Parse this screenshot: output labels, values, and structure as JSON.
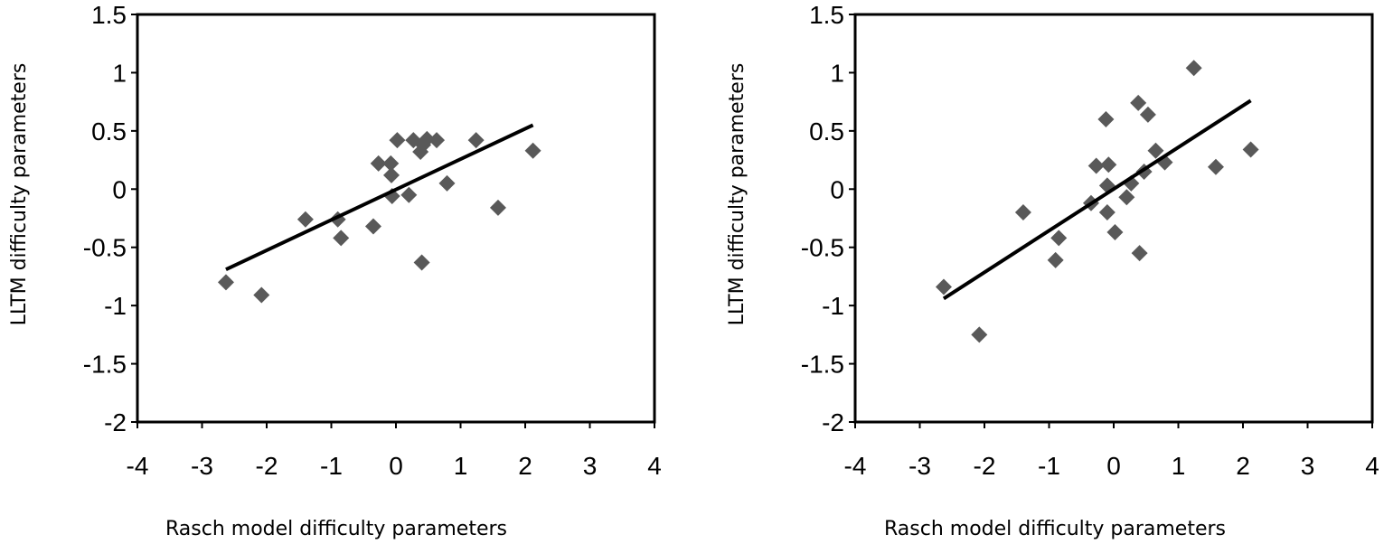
{
  "chart_data": [
    {
      "type": "scatter",
      "title": "",
      "xlabel": "Rasch model difficulty parameters",
      "ylabel": "LLTM difficulty parameters",
      "xlim": [
        -4,
        4
      ],
      "ylim": [
        -2,
        1.5
      ],
      "xticks": [
        "-4",
        "-3",
        "-2",
        "-1",
        "0",
        "1",
        "2",
        "3",
        "4"
      ],
      "yticks": [
        "1.5",
        "1",
        "0.5",
        "0",
        "-0.5",
        "-1",
        "-1.5",
        "-2"
      ],
      "grid": false,
      "legend": "none",
      "marker_color": "#595959",
      "line_color": "#000000",
      "points": [
        {
          "x": -2.63,
          "y": -0.8
        },
        {
          "x": -2.08,
          "y": -0.91
        },
        {
          "x": -1.4,
          "y": -0.26
        },
        {
          "x": -0.9,
          "y": -0.26
        },
        {
          "x": -0.85,
          "y": -0.42
        },
        {
          "x": -0.35,
          "y": -0.32
        },
        {
          "x": -0.27,
          "y": 0.22
        },
        {
          "x": -0.08,
          "y": 0.22
        },
        {
          "x": -0.07,
          "y": 0.12
        },
        {
          "x": -0.06,
          "y": -0.06
        },
        {
          "x": 0.02,
          "y": 0.42
        },
        {
          "x": 0.2,
          "y": -0.05
        },
        {
          "x": 0.27,
          "y": 0.42
        },
        {
          "x": 0.38,
          "y": 0.32
        },
        {
          "x": 0.4,
          "y": -0.63
        },
        {
          "x": 0.42,
          "y": 0.38
        },
        {
          "x": 0.48,
          "y": 0.43
        },
        {
          "x": 0.63,
          "y": 0.42
        },
        {
          "x": 0.79,
          "y": 0.05
        },
        {
          "x": 1.24,
          "y": 0.42
        },
        {
          "x": 1.58,
          "y": -0.16
        },
        {
          "x": 2.12,
          "y": 0.33
        }
      ],
      "trendline": {
        "x": [
          -2.63,
          2.12
        ],
        "y": [
          -0.69,
          0.55
        ]
      }
    },
    {
      "type": "scatter",
      "title": "",
      "xlabel": "Rasch model difficulty parameters",
      "ylabel": "LLTM difficulty parameters",
      "xlim": [
        -4,
        4
      ],
      "ylim": [
        -2,
        1.5
      ],
      "xticks": [
        "-4",
        "-3",
        "-2",
        "-1",
        "0",
        "1",
        "2",
        "3",
        "4"
      ],
      "yticks": [
        "1.5",
        "1",
        "0.5",
        "0",
        "-0.5",
        "-1",
        "-1.5",
        "-2"
      ],
      "grid": false,
      "legend": "none",
      "marker_color": "#595959",
      "line_color": "#000000",
      "points": [
        {
          "x": -2.63,
          "y": -0.84
        },
        {
          "x": -2.08,
          "y": -1.25
        },
        {
          "x": -1.4,
          "y": -0.2
        },
        {
          "x": -0.9,
          "y": -0.61
        },
        {
          "x": -0.85,
          "y": -0.42
        },
        {
          "x": -0.35,
          "y": -0.12
        },
        {
          "x": -0.27,
          "y": 0.2
        },
        {
          "x": -0.12,
          "y": 0.6
        },
        {
          "x": -0.1,
          "y": 0.03
        },
        {
          "x": -0.08,
          "y": 0.21
        },
        {
          "x": -0.1,
          "y": -0.2
        },
        {
          "x": 0.02,
          "y": -0.37
        },
        {
          "x": 0.2,
          "y": -0.07
        },
        {
          "x": 0.27,
          "y": 0.05
        },
        {
          "x": 0.38,
          "y": 0.74
        },
        {
          "x": 0.4,
          "y": -0.55
        },
        {
          "x": 0.47,
          "y": 0.15
        },
        {
          "x": 0.53,
          "y": 0.64
        },
        {
          "x": 0.65,
          "y": 0.33
        },
        {
          "x": 0.79,
          "y": 0.23
        },
        {
          "x": 1.24,
          "y": 1.04
        },
        {
          "x": 1.58,
          "y": 0.19
        },
        {
          "x": 2.12,
          "y": 0.34
        }
      ],
      "trendline": {
        "x": [
          -2.63,
          2.12
        ],
        "y": [
          -0.94,
          0.76
        ]
      }
    }
  ]
}
